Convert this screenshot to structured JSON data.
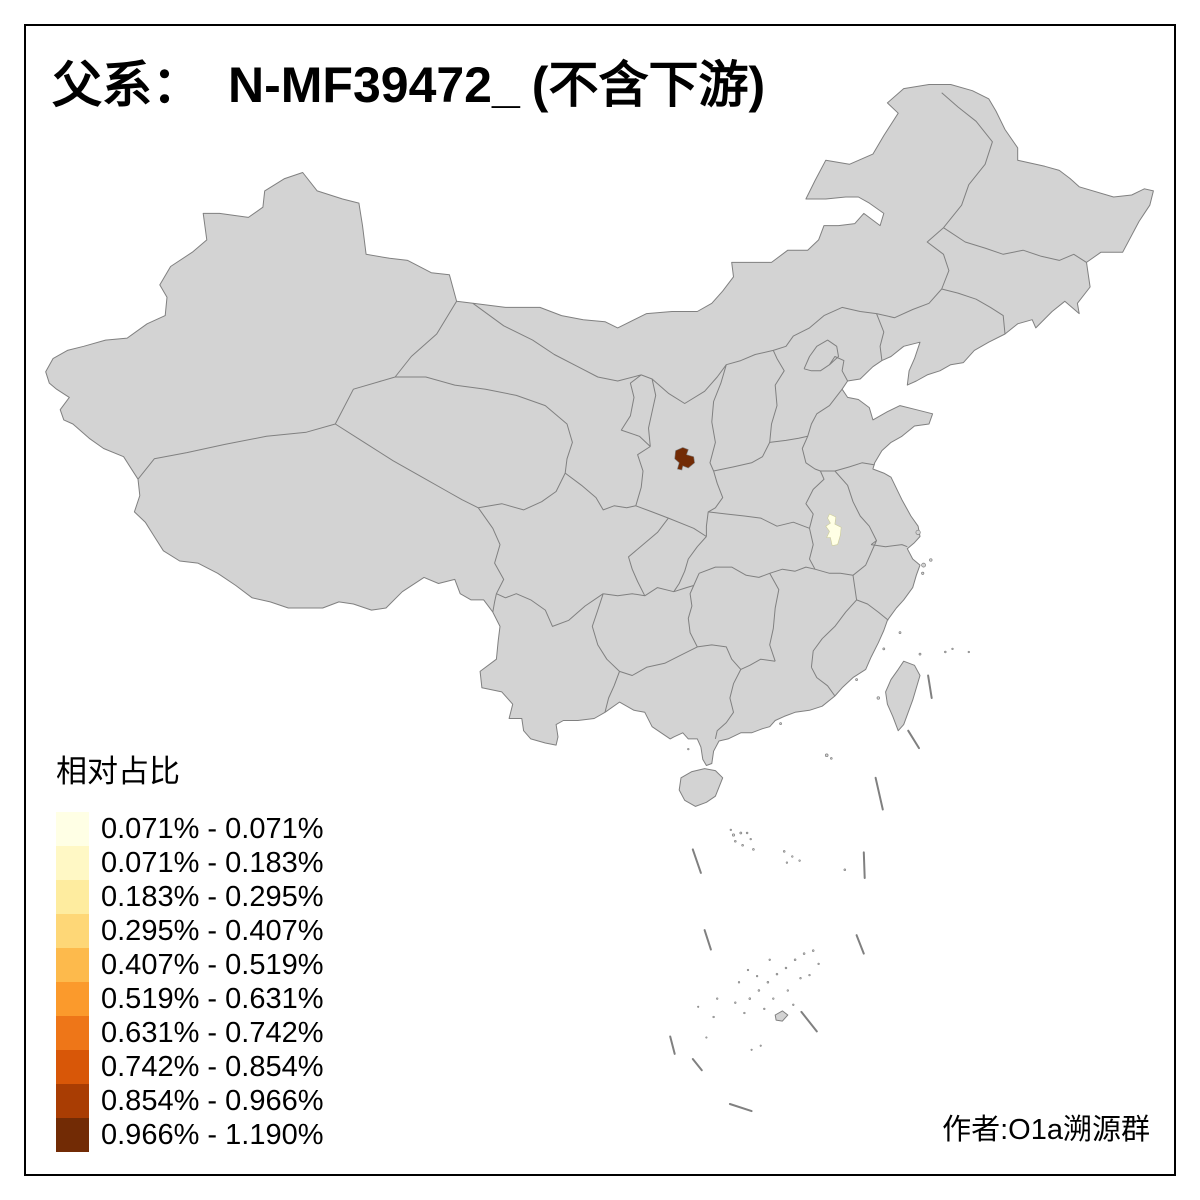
{
  "title": {
    "prefix": "父系：",
    "haplogroup": "N-MF39472_",
    "suffix": "(不含下游)"
  },
  "legend": {
    "title": "相对占比",
    "entries": [
      {
        "range": "0.071% - 0.071%",
        "color": "#FFFFE5"
      },
      {
        "range": "0.071% - 0.183%",
        "color": "#FFF8C5"
      },
      {
        "range": "0.183% - 0.295%",
        "color": "#FEEC9F"
      },
      {
        "range": "0.295% - 0.407%",
        "color": "#FED777"
      },
      {
        "range": "0.407% - 0.519%",
        "color": "#FDBA4C"
      },
      {
        "range": "0.519% - 0.631%",
        "color": "#FB9A2C"
      },
      {
        "range": "0.631% - 0.742%",
        "color": "#EE7618"
      },
      {
        "range": "0.742% - 0.854%",
        "color": "#D85708"
      },
      {
        "range": "0.854% - 0.966%",
        "color": "#A93D03"
      },
      {
        "range": "0.966% - 1.190%",
        "color": "#722B05"
      }
    ]
  },
  "map": {
    "land_fill": "#D3D3D3",
    "border_color": "#808080",
    "frame_color": "#000000",
    "background": "#FFFFFF",
    "highlights": [
      {
        "legend_range": "0.966% - 1.190%",
        "color": "#722B05"
      },
      {
        "legend_range": "0.071% - 0.071%",
        "color": "#FFFFE5"
      }
    ]
  },
  "author": "作者:O1a溯源群"
}
